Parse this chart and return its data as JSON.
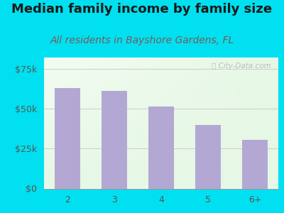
{
  "title": "Median family income by family size",
  "subtitle": "All residents in Bayshore Gardens, FL",
  "categories": [
    "2",
    "3",
    "4",
    "5",
    "6+"
  ],
  "values": [
    63000,
    61000,
    51500,
    40000,
    30500
  ],
  "bar_color": "#b3a8d4",
  "background_outer": "#00e0f0",
  "title_color": "#1a1a1a",
  "subtitle_color": "#7a5a5a",
  "yticks": [
    0,
    25000,
    50000,
    75000
  ],
  "ytick_labels": [
    "$0",
    "$25k",
    "$50k",
    "$75k"
  ],
  "ylim": [
    0,
    82000
  ],
  "watermark": "ⓘ City-Data.com",
  "title_fontsize": 13,
  "subtitle_fontsize": 10,
  "tick_fontsize": 9,
  "axis_color": "#555555"
}
